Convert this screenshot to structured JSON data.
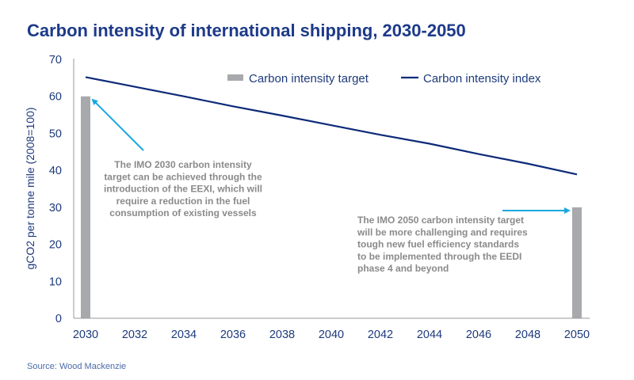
{
  "chart_data": {
    "type": "bar+line",
    "title": "Carbon intensity of international shipping, 2030-2050",
    "ylabel": "gCO2 per tonne mile (2008=100)",
    "xlabel": "",
    "ylim": [
      0,
      70
    ],
    "yticks": [
      "0",
      "10",
      "20",
      "30",
      "40",
      "50",
      "60",
      "70"
    ],
    "xticks": [
      "2030",
      "2032",
      "2034",
      "2036",
      "2038",
      "2040",
      "2042",
      "2044",
      "2046",
      "2048",
      "2050"
    ],
    "grid": false,
    "legend_position": "top",
    "series": [
      {
        "name": "Carbon intensity target",
        "type": "bar",
        "color": "#a7a9ac",
        "x": [
          2030,
          2050
        ],
        "values": [
          60,
          30
        ]
      },
      {
        "name": "Carbon intensity index",
        "type": "line",
        "color": "#0c2a78",
        "x": [
          2030,
          2032,
          2034,
          2036,
          2038,
          2040,
          2042,
          2044,
          2046,
          2048,
          2050
        ],
        "values": [
          65.2,
          62.6,
          60.0,
          57.3,
          54.8,
          52.2,
          49.6,
          47.2,
          44.4,
          41.8,
          38.9
        ]
      }
    ],
    "annotations": [
      {
        "points_to": 2030,
        "lines": [
          "The IMO 2030 carbon intensity",
          "target can be achieved through the",
          "introduction of the EEXI, which will",
          "require a reduction in the fuel",
          "consumption of existing vessels"
        ]
      },
      {
        "points_to": 2050,
        "lines": [
          "The IMO 2050 carbon intensity target",
          "will be more challenging and requires",
          "tough new fuel efficiency standards",
          "to be implemented through the EEDI",
          "phase 4 and beyond"
        ]
      }
    ],
    "arrow_color": "#1aa7e0"
  },
  "source": "Source: Wood Mackenzie"
}
